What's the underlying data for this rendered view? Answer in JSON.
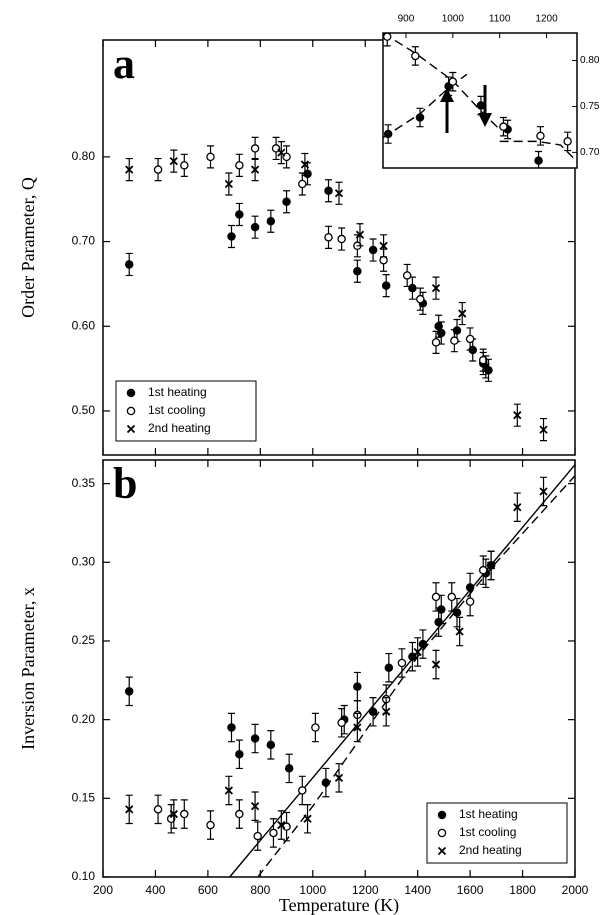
{
  "chart_data": [
    {
      "type": "scatter",
      "panel_label": "a",
      "y_label": "Order Parameter, Q",
      "xlim": [
        200,
        2000
      ],
      "ylim": [
        0.448,
        0.938
      ],
      "yticks": [
        {
          "value": 0.5,
          "label": "0.50"
        },
        {
          "value": 0.6,
          "label": "0.60"
        },
        {
          "value": 0.7,
          "label": "0.70"
        },
        {
          "value": 0.8,
          "label": "0.80"
        }
      ],
      "legend": "lower left",
      "series": [
        {
          "name": "1st heating",
          "marker": "filled-circle",
          "color": "#000000",
          "error": 0.013,
          "x": [
            300,
            690,
            720,
            780,
            840,
            900,
            980,
            1060,
            1170,
            1230,
            1280,
            1380,
            1420,
            1480,
            1490,
            1550,
            1610,
            1650,
            1670
          ],
          "values": [
            0.673,
            0.706,
            0.732,
            0.717,
            0.724,
            0.747,
            0.78,
            0.76,
            0.665,
            0.69,
            0.648,
            0.645,
            0.627,
            0.6,
            0.592,
            0.595,
            0.572,
            0.556,
            0.548
          ]
        },
        {
          "name": "1st cooling",
          "marker": "open-circle",
          "color": "#000000",
          "error": 0.013,
          "x": [
            410,
            510,
            610,
            720,
            780,
            860,
            900,
            960,
            1060,
            1110,
            1170,
            1270,
            1360,
            1410,
            1470,
            1540,
            1600,
            1650
          ],
          "values": [
            0.785,
            0.79,
            0.8,
            0.79,
            0.81,
            0.81,
            0.8,
            0.768,
            0.705,
            0.703,
            0.695,
            0.678,
            0.66,
            0.632,
            0.581,
            0.583,
            0.585,
            0.56
          ]
        },
        {
          "name": "2nd heating",
          "marker": "x",
          "color": "#000000",
          "error": 0.013,
          "x": [
            300,
            470,
            680,
            780,
            880,
            970,
            1100,
            1180,
            1270,
            1470,
            1570,
            1660,
            1780,
            1880
          ],
          "values": [
            0.785,
            0.795,
            0.768,
            0.785,
            0.805,
            0.791,
            0.757,
            0.708,
            0.695,
            0.645,
            0.615,
            0.552,
            0.495,
            0.478
          ]
        }
      ]
    },
    {
      "type": "scatter",
      "inset": true,
      "xlim": [
        851,
        1265
      ],
      "ylim": [
        0.683,
        0.83
      ],
      "xticks": [
        900,
        1000,
        1100,
        1200
      ],
      "yticks": [
        {
          "value": 0.7,
          "label": "0.70"
        },
        0.75,
        {
          "value": 0.8,
          "label": "0.80"
        }
      ],
      "series": [
        {
          "marker": "filled-circle",
          "color": "#000000",
          "error": 0.01,
          "x": [
            862,
            930,
            991,
            1060,
            1117,
            1183
          ],
          "values": [
            0.72,
            0.738,
            0.772,
            0.751,
            0.725,
            0.691
          ]
        },
        {
          "marker": "open-circle",
          "color": "#000000",
          "error": 0.01,
          "x": [
            860,
            920,
            1000,
            1108,
            1187,
            1245
          ],
          "values": [
            0.826,
            0.805,
            0.777,
            0.728,
            0.718,
            0.712
          ]
        }
      ],
      "lines": [
        {
          "dash": true,
          "x": [
            851,
            930,
            995,
            1030
          ],
          "values": [
            0.716,
            0.742,
            0.772,
            0.785
          ]
        },
        {
          "dash": true,
          "x": [
            851,
            920,
            1000,
            1060,
            1100
          ],
          "values": [
            0.83,
            0.808,
            0.778,
            0.745,
            0.725
          ]
        },
        {
          "dash": true,
          "x": [
            1100,
            1180,
            1230,
            1265
          ],
          "values": [
            0.712,
            0.712,
            0.708,
            0.69
          ]
        }
      ]
    },
    {
      "type": "scatter",
      "panel_label": "b",
      "y_label": "Inversion Parameter, x",
      "x_label": "Temperature (K)",
      "xlim": [
        200,
        2000
      ],
      "ylim": [
        0.1,
        0.365
      ],
      "xticks": [
        200,
        400,
        600,
        800,
        1000,
        1200,
        1400,
        1600,
        1800,
        2000
      ],
      "yticks": [
        {
          "value": 0.1,
          "label": "0.10"
        },
        0.15,
        {
          "value": 0.2,
          "label": "0.20"
        },
        0.25,
        {
          "value": 0.3,
          "label": "0.30"
        },
        0.35
      ],
      "legend": "lower right",
      "series": [
        {
          "name": "1st heating",
          "marker": "filled-circle",
          "color": "#000000",
          "error": 0.009,
          "x": [
            300,
            690,
            720,
            780,
            840,
            910,
            1050,
            1120,
            1170,
            1230,
            1290,
            1380,
            1420,
            1480,
            1490,
            1550,
            1600,
            1660,
            1680
          ],
          "values": [
            0.218,
            0.195,
            0.178,
            0.188,
            0.184,
            0.169,
            0.16,
            0.2,
            0.221,
            0.205,
            0.233,
            0.24,
            0.248,
            0.262,
            0.27,
            0.268,
            0.284,
            0.293,
            0.298
          ]
        },
        {
          "name": "1st cooling",
          "marker": "open-circle",
          "color": "#000000",
          "error": 0.009,
          "x": [
            410,
            460,
            510,
            610,
            720,
            790,
            850,
            900,
            960,
            1010,
            1110,
            1170,
            1280,
            1340,
            1470,
            1530,
            1600,
            1650
          ],
          "values": [
            0.143,
            0.137,
            0.14,
            0.133,
            0.14,
            0.126,
            0.128,
            0.132,
            0.155,
            0.195,
            0.198,
            0.203,
            0.213,
            0.236,
            0.278,
            0.278,
            0.275,
            0.295
          ]
        },
        {
          "name": "2nd heating",
          "marker": "x",
          "color": "#000000",
          "error": 0.009,
          "x": [
            300,
            470,
            680,
            780,
            880,
            980,
            1100,
            1170,
            1280,
            1400,
            1470,
            1560,
            1680,
            1780,
            1880
          ],
          "values": [
            0.143,
            0.14,
            0.155,
            0.145,
            0.133,
            0.137,
            0.163,
            0.195,
            0.205,
            0.243,
            0.235,
            0.256,
            0.298,
            0.335,
            0.345
          ]
        }
      ],
      "lines": [
        {
          "dash": false,
          "x": [
            683,
            2000
          ],
          "values": [
            0.1,
            0.362
          ]
        },
        {
          "dash": true,
          "x": [
            790,
            1000,
            1400,
            1700,
            2000
          ],
          "values": [
            0.1,
            0.145,
            0.24,
            0.3,
            0.355
          ]
        }
      ]
    }
  ]
}
